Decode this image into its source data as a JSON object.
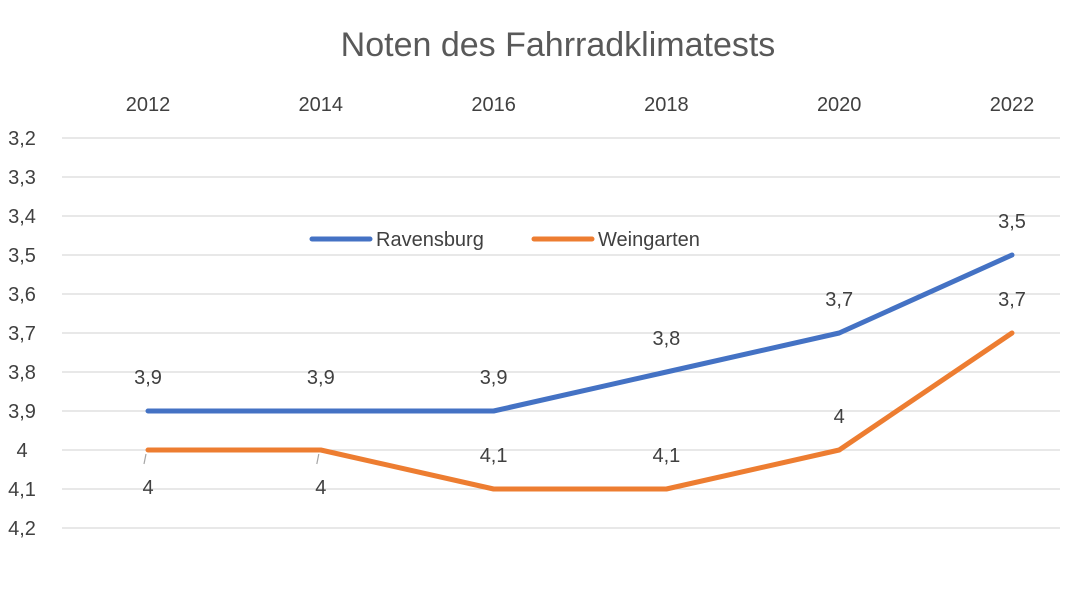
{
  "chart_data": {
    "type": "line",
    "title": "Noten des Fahrradklimatests",
    "categories": [
      "2012",
      "2014",
      "2016",
      "2018",
      "2020",
      "2022"
    ],
    "y_ticks": [
      "3,2",
      "3,3",
      "3,4",
      "3,5",
      "3,6",
      "3,7",
      "3,8",
      "3,9",
      "4",
      "4,1",
      "4,2"
    ],
    "ylim": [
      3.2,
      4.2
    ],
    "y_reversed": true,
    "x_axis_position": "top",
    "grid": true,
    "legend_position": "inside-top-left",
    "series": [
      {
        "name": "Ravensburg",
        "color": "#4472C4",
        "values": [
          3.9,
          3.9,
          3.9,
          3.8,
          3.7,
          3.5
        ],
        "labels": [
          "3,9",
          "3,9",
          "3,9",
          "3,8",
          "3,7",
          "3,5"
        ]
      },
      {
        "name": "Weingarten",
        "color": "#ED7D31",
        "values": [
          4,
          4,
          4.1,
          4.1,
          4,
          3.7
        ],
        "labels": [
          "4",
          "4",
          "4,1",
          "4,1",
          "4",
          "3,7"
        ]
      }
    ]
  }
}
